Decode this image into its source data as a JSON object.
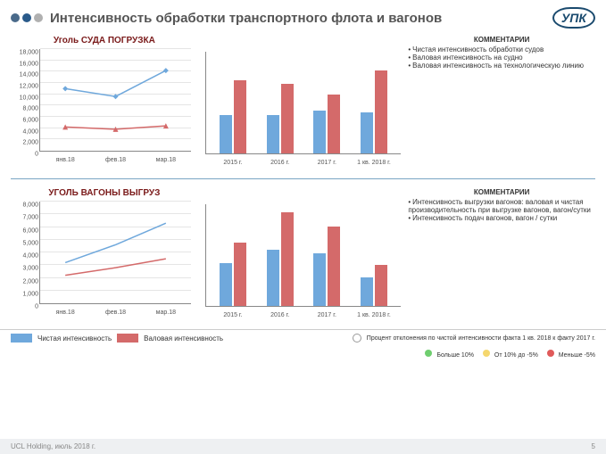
{
  "header": {
    "title": "Интенсивность обработки транспортного флота и вагонов",
    "logo": "УПК",
    "dot_colors": [
      "#4a6a8a",
      "#2a5a8a",
      "#b0b0b0"
    ]
  },
  "colors": {
    "blue": "#6fa8dc",
    "red": "#d46a6a",
    "grid": "#e5e5e5",
    "axis": "#888888",
    "title": "#7a1a1a"
  },
  "chart1": {
    "type": "line",
    "title": "Уголь СУДА ПОГРУЗКА",
    "categories": [
      "янв.18",
      "фев.18",
      "мар.18"
    ],
    "ylim": [
      0,
      18000
    ],
    "ytick_step": 2000,
    "series": [
      {
        "name": "red",
        "color": "#d46a6a",
        "values": [
          4200,
          3800,
          4400
        ],
        "marker": "triangle"
      },
      {
        "name": "blue",
        "color": "#6fa8dc",
        "values": [
          11000,
          9600,
          14200
        ],
        "marker": "diamond"
      }
    ]
  },
  "chart2": {
    "type": "bar",
    "categories": [
      "2015 г.",
      "2016 г.",
      "2017 г.",
      "1 кв. 2018 г."
    ],
    "ylim": [
      0,
      100
    ],
    "series": [
      {
        "name": "blue",
        "color": "#6fa8dc",
        "values": [
          38,
          38,
          42,
          40
        ]
      },
      {
        "name": "red",
        "color": "#d46a6a",
        "values": [
          72,
          68,
          58,
          82
        ]
      }
    ]
  },
  "comments1": {
    "title": "КОММЕНТАРИИ",
    "items": [
      "Чистая интенсивность обработки судов",
      "Валовая интенсивность на судно",
      "Валовая интенсивность на технологическую линию"
    ]
  },
  "chart3": {
    "type": "line",
    "title": "УГОЛЬ ВАГОНЫ ВЫГРУЗ",
    "categories": [
      "янв.18",
      "фев.18",
      "мар.18"
    ],
    "ylim": [
      0,
      8000
    ],
    "ytick_step": 1000,
    "series": [
      {
        "name": "red",
        "color": "#d46a6a",
        "values": [
          2200,
          2800,
          3500
        ],
        "marker": "none"
      },
      {
        "name": "blue",
        "color": "#6fa8dc",
        "values": [
          3200,
          4600,
          6300
        ],
        "marker": "none"
      }
    ]
  },
  "chart4": {
    "type": "bar",
    "categories": [
      "2015 г.",
      "2016 г.",
      "2017 г.",
      "1 кв. 2018 г."
    ],
    "ylim": [
      0,
      100
    ],
    "series": [
      {
        "name": "blue",
        "color": "#6fa8dc",
        "values": [
          42,
          55,
          52,
          28
        ]
      },
      {
        "name": "red",
        "color": "#d46a6a",
        "values": [
          62,
          92,
          78,
          40
        ]
      }
    ]
  },
  "comments2": {
    "title": "КОММЕНТАРИИ",
    "items": [
      "Интенсивность выгрузки вагонов: валовая и чистая производительность при выгрузке вагонов, вагон/сутки",
      "Интенсивность подач вагонов, вагон / сутки"
    ]
  },
  "legend": {
    "clean": "Чистая интенсивность",
    "gross": "Валовая интенсивность",
    "deviation_label": "Процент отклонения по чистой интенсивности факта 1 кв. 2018 к факту 2017 г.",
    "bands": [
      {
        "label": "Больше 10%",
        "color": "#6fce6f"
      },
      {
        "label": "От 10% до -5%",
        "color": "#f5d76e"
      },
      {
        "label": "Меньше -5%",
        "color": "#e05a5a"
      }
    ]
  },
  "footer": {
    "left": "UCL Holding, июль 2018 г.",
    "page": "5"
  }
}
